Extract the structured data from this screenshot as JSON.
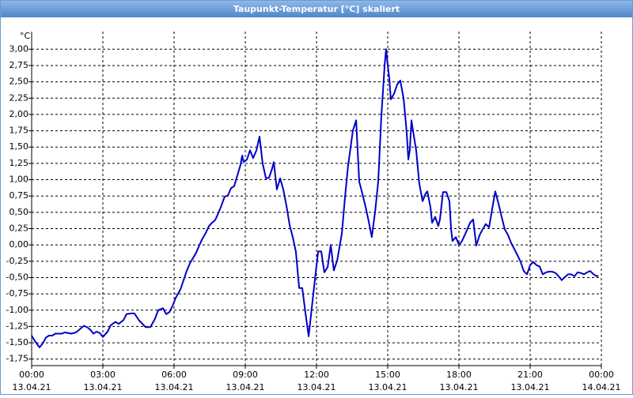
{
  "chart_data": {
    "type": "line",
    "title": "Taupunkt-Temperatur [°C] skaliert",
    "y_unit": "°C",
    "color": "#0000c8",
    "grid": true,
    "xlim": [
      0,
      24
    ],
    "ylim": [
      -1.85,
      3.27
    ],
    "xticks": [
      {
        "value": 0,
        "label": "00:00",
        "date": "13.04.21"
      },
      {
        "value": 3,
        "label": "03:00",
        "date": "13.04.21"
      },
      {
        "value": 6,
        "label": "06:00",
        "date": "13.04.21"
      },
      {
        "value": 9,
        "label": "09:00",
        "date": "13.04.21"
      },
      {
        "value": 12,
        "label": "12:00",
        "date": "13.04.21"
      },
      {
        "value": 15,
        "label": "15:00",
        "date": "13.04.21"
      },
      {
        "value": 18,
        "label": "18:00",
        "date": "13.04.21"
      },
      {
        "value": 21,
        "label": "21:00",
        "date": "13.04.21"
      },
      {
        "value": 24,
        "label": "00:00",
        "date": "14.04.21"
      }
    ],
    "yticks": [
      {
        "value": 3,
        "label": "3,00"
      },
      {
        "value": 2.75,
        "label": "2,75"
      },
      {
        "value": 2.5,
        "label": "2,50"
      },
      {
        "value": 2.25,
        "label": "2,25"
      },
      {
        "value": 2,
        "label": "2,00"
      },
      {
        "value": 1.75,
        "label": "1,75"
      },
      {
        "value": 1.5,
        "label": "1,50"
      },
      {
        "value": 1.25,
        "label": "1,25"
      },
      {
        "value": 1,
        "label": "1,00"
      },
      {
        "value": 0.75,
        "label": "0,75"
      },
      {
        "value": 0.5,
        "label": "0,50"
      },
      {
        "value": 0.25,
        "label": "0,25"
      },
      {
        "value": 0,
        "label": "0,00"
      },
      {
        "value": -0.25,
        "label": "-0,25"
      },
      {
        "value": -0.5,
        "label": "-0,50"
      },
      {
        "value": -0.75,
        "label": "-0,75"
      },
      {
        "value": -1,
        "label": "-1,00"
      },
      {
        "value": -1.25,
        "label": "-1,25"
      },
      {
        "value": -1.5,
        "label": "-1,50"
      },
      {
        "value": -1.75,
        "label": "-1,75"
      }
    ],
    "x": [
      0,
      0.13,
      0.33,
      0.47,
      0.6,
      0.73,
      0.87,
      1,
      1.27,
      1.4,
      1.67,
      1.87,
      2.07,
      2.2,
      2.33,
      2.47,
      2.6,
      2.73,
      2.87,
      3,
      3.2,
      3.33,
      3.53,
      3.67,
      3.87,
      4,
      4.2,
      4.33,
      4.53,
      4.67,
      4.8,
      5,
      5.2,
      5.33,
      5.53,
      5.67,
      5.8,
      5.93,
      6.07,
      6.27,
      6.4,
      6.53,
      6.67,
      6.8,
      6.93,
      7.07,
      7.2,
      7.33,
      7.47,
      7.6,
      7.73,
      7.87,
      8,
      8.13,
      8.27,
      8.4,
      8.53,
      8.67,
      8.8,
      8.87,
      8.93,
      9.07,
      9.2,
      9.33,
      9.47,
      9.6,
      9.73,
      9.87,
      10,
      10.13,
      10.2,
      10.33,
      10.47,
      10.6,
      10.73,
      10.87,
      11,
      11.13,
      11.27,
      11.4,
      11.53,
      11.67,
      11.8,
      11.93,
      12.07,
      12.2,
      12.33,
      12.47,
      12.6,
      12.73,
      12.87,
      13.07,
      13.2,
      13.33,
      13.53,
      13.67,
      13.8,
      13.93,
      14.07,
      14.2,
      14.33,
      14.47,
      14.6,
      14.73,
      14.87,
      14.93,
      15,
      15.07,
      15.13,
      15.27,
      15.4,
      15.53,
      15.67,
      15.73,
      15.8,
      15.87,
      15.93,
      16,
      16.07,
      16.2,
      16.33,
      16.47,
      16.6,
      16.67,
      16.8,
      16.87,
      17,
      17.13,
      17.2,
      17.33,
      17.47,
      17.6,
      17.67,
      17.73,
      17.87,
      18,
      18.13,
      18.33,
      18.47,
      18.6,
      18.73,
      18.87,
      19,
      19.13,
      19.27,
      19.4,
      19.53,
      19.67,
      19.8,
      19.93,
      20.07,
      20.2,
      20.33,
      20.47,
      20.6,
      20.73,
      20.87,
      21,
      21.13,
      21.27,
      21.4,
      21.53,
      21.67,
      21.8,
      21.93,
      22.07,
      22.2,
      22.33,
      22.47,
      22.6,
      22.73,
      22.87,
      23,
      23.13,
      23.27,
      23.4,
      23.53,
      23.67,
      23.8,
      23.87
    ],
    "values": [
      -1.39,
      -1.47,
      -1.57,
      -1.51,
      -1.42,
      -1.39,
      -1.39,
      -1.36,
      -1.36,
      -1.34,
      -1.36,
      -1.34,
      -1.28,
      -1.24,
      -1.26,
      -1.3,
      -1.36,
      -1.33,
      -1.35,
      -1.41,
      -1.33,
      -1.23,
      -1.18,
      -1.21,
      -1.15,
      -1.06,
      -1.05,
      -1.05,
      -1.16,
      -1.21,
      -1.26,
      -1.26,
      -1.13,
      -1,
      -0.97,
      -1.06,
      -1.03,
      -0.94,
      -0.81,
      -0.68,
      -0.54,
      -0.4,
      -0.28,
      -0.2,
      -0.12,
      0,
      0.1,
      0.18,
      0.29,
      0.34,
      0.38,
      0.49,
      0.61,
      0.74,
      0.76,
      0.87,
      0.9,
      1.07,
      1.23,
      1.37,
      1.27,
      1.31,
      1.45,
      1.33,
      1.45,
      1.66,
      1.25,
      1.02,
      1.03,
      1.17,
      1.27,
      0.85,
      1.02,
      0.85,
      0.61,
      0.3,
      0.12,
      -0.1,
      -0.66,
      -0.66,
      -1.03,
      -1.4,
      -0.97,
      -0.54,
      -0.1,
      -0.1,
      -0.42,
      -0.34,
      0,
      -0.39,
      -0.24,
      0.18,
      0.73,
      1.21,
      1.75,
      1.91,
      0.97,
      0.79,
      0.58,
      0.36,
      0.12,
      0.51,
      0.97,
      1.96,
      2.75,
      3,
      2.76,
      2.54,
      2.23,
      2.32,
      2.46,
      2.52,
      2.24,
      2.01,
      1.72,
      1.31,
      1.45,
      1.91,
      1.74,
      1.45,
      0.94,
      0.67,
      0.79,
      0.82,
      0.58,
      0.34,
      0.43,
      0.29,
      0.39,
      0.81,
      0.81,
      0.67,
      0.24,
      0.06,
      0.12,
      0,
      0.06,
      0.22,
      0.34,
      0.39,
      -0.01,
      0.15,
      0.24,
      0.32,
      0.27,
      0.55,
      0.82,
      0.63,
      0.43,
      0.24,
      0.15,
      0.03,
      -0.06,
      -0.16,
      -0.26,
      -0.4,
      -0.45,
      -0.31,
      -0.26,
      -0.31,
      -0.33,
      -0.45,
      -0.42,
      -0.41,
      -0.41,
      -0.43,
      -0.48,
      -0.54,
      -0.49,
      -0.45,
      -0.45,
      -0.48,
      -0.42,
      -0.43,
      -0.45,
      -0.42,
      -0.4,
      -0.45,
      -0.48,
      -0.47
    ]
  }
}
